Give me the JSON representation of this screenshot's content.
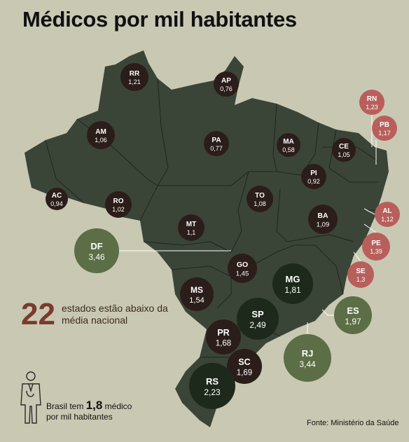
{
  "title": "Médicos por mil habitantes",
  "highlight": {
    "number": "22",
    "text": "estados estão abaixo da média nacional"
  },
  "national_average": {
    "prefix": "Brasil tem",
    "value": "1,8",
    "suffix_line1": "médico",
    "suffix_line2": "por mil habitantes"
  },
  "source": "Fonte: Ministério da Saúde",
  "icons": {
    "doctor": "doctor-icon"
  },
  "colors": {
    "background": "#c9c8b3",
    "land": "#3a4538",
    "dark_bubble": "#2b1d19",
    "green_bubble": "#5b6e45",
    "darkgreen_bubble": "#1d2a1b",
    "red_bubble": "#b85f5c",
    "highlight_number": "#7a3b2c"
  },
  "states": [
    {
      "code": "RR",
      "value": "1,21",
      "category": "dark"
    },
    {
      "code": "AP",
      "value": "0,76",
      "category": "dark"
    },
    {
      "code": "AM",
      "value": "1,06",
      "category": "dark"
    },
    {
      "code": "PA",
      "value": "0,77",
      "category": "dark"
    },
    {
      "code": "MA",
      "value": "0,58",
      "category": "dark"
    },
    {
      "code": "CE",
      "value": "1,05",
      "category": "dark"
    },
    {
      "code": "PI",
      "value": "0,92",
      "category": "dark"
    },
    {
      "code": "AC",
      "value": "0,94",
      "category": "dark"
    },
    {
      "code": "RO",
      "value": "1,02",
      "category": "dark"
    },
    {
      "code": "TO",
      "value": "1,08",
      "category": "dark"
    },
    {
      "code": "BA",
      "value": "1,09",
      "category": "dark"
    },
    {
      "code": "MT",
      "value": "1,1",
      "category": "dark"
    },
    {
      "code": "GO",
      "value": "1,45",
      "category": "dark"
    },
    {
      "code": "MS",
      "value": "1,54",
      "category": "dark"
    },
    {
      "code": "PR",
      "value": "1,68",
      "category": "dark"
    },
    {
      "code": "SC",
      "value": "1,69",
      "category": "dark"
    },
    {
      "code": "MG",
      "value": "1,81",
      "category": "darkgreen"
    },
    {
      "code": "SP",
      "value": "2,49",
      "category": "darkgreen"
    },
    {
      "code": "RS",
      "value": "2,23",
      "category": "darkgreen"
    },
    {
      "code": "DF",
      "value": "3,46",
      "category": "green"
    },
    {
      "code": "ES",
      "value": "1,97",
      "category": "green"
    },
    {
      "code": "RJ",
      "value": "3,44",
      "category": "green"
    },
    {
      "code": "RN",
      "value": "1,23",
      "category": "red"
    },
    {
      "code": "PB",
      "value": "1,17",
      "category": "red"
    },
    {
      "code": "AL",
      "value": "1,12",
      "category": "red"
    },
    {
      "code": "PE",
      "value": "1,39",
      "category": "red"
    },
    {
      "code": "SE",
      "value": "1,3",
      "category": "red"
    }
  ]
}
